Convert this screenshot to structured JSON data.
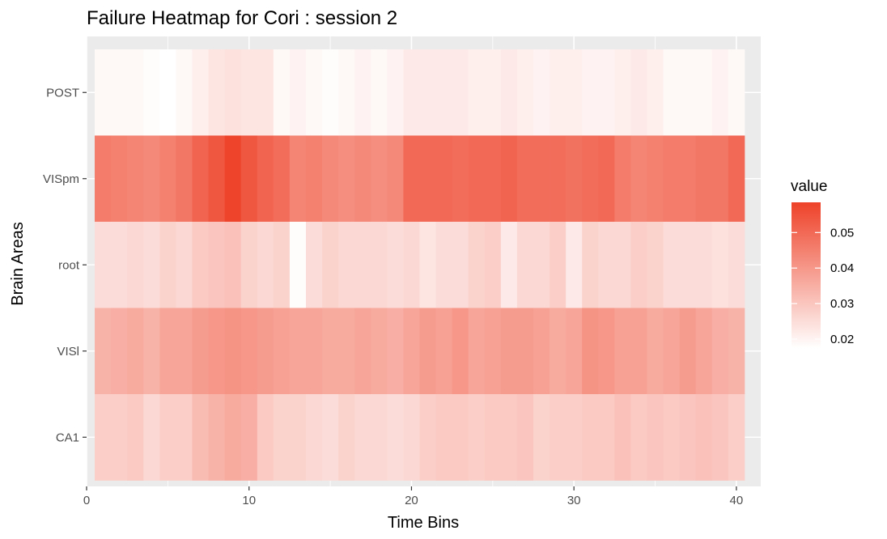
{
  "chart_data": {
    "type": "heatmap",
    "title": "Failure Heatmap for Cori : session 2",
    "xlabel": "Time Bins",
    "ylabel": "Brain Areas",
    "x": [
      1,
      2,
      3,
      4,
      5,
      6,
      7,
      8,
      9,
      10,
      11,
      12,
      13,
      14,
      15,
      16,
      17,
      18,
      19,
      20,
      21,
      22,
      23,
      24,
      25,
      26,
      27,
      28,
      29,
      30,
      31,
      32,
      33,
      34,
      35,
      36,
      37,
      38,
      39,
      40
    ],
    "xlim": [
      0,
      41.5
    ],
    "x_ticks": [
      0,
      10,
      20,
      30,
      40
    ],
    "x_tick_labels": [
      "0",
      "10",
      "20",
      "30",
      "40"
    ],
    "rows_top_to_bottom": [
      "POST",
      "VISpm",
      "root",
      "VISl",
      "CA1"
    ],
    "values": {
      "POST": [
        0.019,
        0.019,
        0.019,
        0.018,
        0.017,
        0.019,
        0.021,
        0.023,
        0.024,
        0.023,
        0.023,
        0.019,
        0.02,
        0.019,
        0.018,
        0.019,
        0.02,
        0.019,
        0.02,
        0.022,
        0.022,
        0.022,
        0.022,
        0.021,
        0.021,
        0.022,
        0.021,
        0.02,
        0.021,
        0.021,
        0.02,
        0.02,
        0.021,
        0.022,
        0.021,
        0.019,
        0.019,
        0.019,
        0.02,
        0.019
      ],
      "VISpm": [
        0.046,
        0.045,
        0.044,
        0.043,
        0.045,
        0.047,
        0.051,
        0.054,
        0.058,
        0.054,
        0.051,
        0.049,
        0.044,
        0.045,
        0.043,
        0.042,
        0.043,
        0.042,
        0.043,
        0.05,
        0.05,
        0.05,
        0.049,
        0.05,
        0.05,
        0.051,
        0.049,
        0.049,
        0.049,
        0.048,
        0.049,
        0.05,
        0.046,
        0.044,
        0.045,
        0.046,
        0.046,
        0.047,
        0.047,
        0.05
      ],
      "root": [
        0.025,
        0.025,
        0.026,
        0.025,
        0.027,
        0.026,
        0.029,
        0.03,
        0.031,
        0.027,
        0.026,
        0.027,
        0.018,
        0.025,
        0.027,
        0.026,
        0.026,
        0.026,
        0.025,
        0.026,
        0.023,
        0.025,
        0.025,
        0.027,
        0.028,
        0.022,
        0.026,
        0.026,
        0.028,
        0.022,
        0.027,
        0.026,
        0.026,
        0.028,
        0.027,
        0.025,
        0.025,
        0.025,
        0.024,
        0.025
      ],
      "VISl": [
        0.034,
        0.035,
        0.036,
        0.034,
        0.037,
        0.037,
        0.039,
        0.04,
        0.041,
        0.04,
        0.039,
        0.038,
        0.037,
        0.037,
        0.036,
        0.036,
        0.037,
        0.036,
        0.035,
        0.037,
        0.039,
        0.038,
        0.04,
        0.037,
        0.038,
        0.039,
        0.039,
        0.038,
        0.036,
        0.037,
        0.041,
        0.04,
        0.038,
        0.038,
        0.036,
        0.037,
        0.039,
        0.037,
        0.035,
        0.034
      ],
      "CA1": [
        0.028,
        0.028,
        0.029,
        0.026,
        0.028,
        0.028,
        0.032,
        0.034,
        0.036,
        0.035,
        0.029,
        0.027,
        0.027,
        0.026,
        0.025,
        0.027,
        0.026,
        0.026,
        0.025,
        0.026,
        0.028,
        0.029,
        0.029,
        0.028,
        0.029,
        0.029,
        0.03,
        0.027,
        0.028,
        0.028,
        0.029,
        0.029,
        0.031,
        0.029,
        0.03,
        0.029,
        0.03,
        0.031,
        0.03,
        0.028
      ]
    },
    "value_range": [
      0.0175,
      0.0585
    ],
    "legend": {
      "title": "value",
      "ticks": [
        0.02,
        0.03,
        0.04,
        0.05
      ],
      "tick_labels": [
        "0.02",
        "0.03",
        "0.04",
        "0.05"
      ],
      "placement": "right"
    },
    "colors": {
      "low": "#ffffff",
      "high": "#ee4229",
      "panel_background": "#ebebeb",
      "gridline": "#ffffff",
      "tick_text": "#4d4d4d"
    },
    "grid": true
  }
}
